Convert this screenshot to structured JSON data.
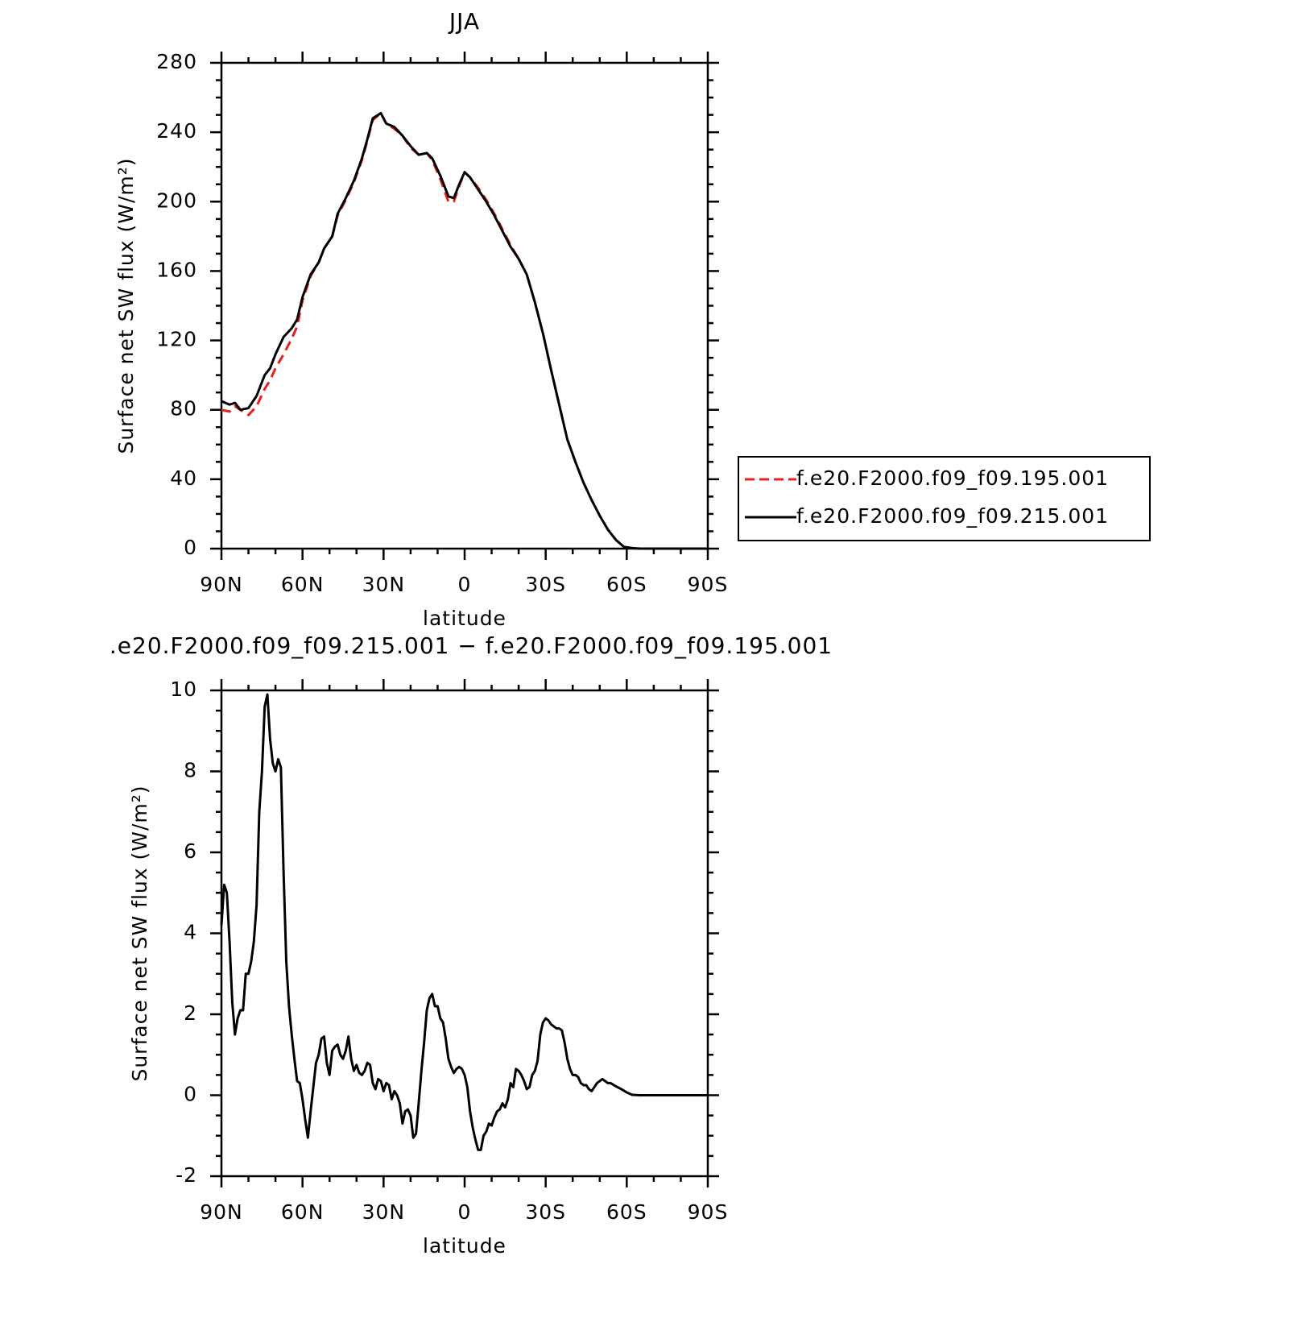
{
  "chart_data": [
    {
      "type": "line",
      "title": "JJA",
      "xlabel": "latitude",
      "ylabel": "Surface net SW flux (W/m²)",
      "x": [
        90,
        87,
        85,
        83,
        80,
        77,
        74,
        72,
        70,
        67,
        64,
        62,
        60,
        57,
        54,
        52,
        49,
        47,
        44,
        41,
        38,
        36,
        34,
        31,
        29,
        26,
        23,
        20,
        17,
        14,
        12,
        9,
        6,
        4,
        2,
        0,
        -2,
        -5,
        -8,
        -11,
        -14,
        -17,
        -20,
        -23,
        -26,
        -29,
        -32,
        -35,
        -38,
        -41,
        -44,
        -47,
        -50,
        -53,
        -56,
        -59,
        -62,
        -65,
        -70,
        -80,
        -90
      ],
      "series": [
        {
          "name": "f.e20.F2000.f09_f09.195.001",
          "color": "#e8201c",
          "dash": true,
          "values": [
            80,
            79,
            82,
            80,
            77,
            82,
            92,
            97,
            104,
            112,
            121,
            128,
            143,
            157,
            165,
            173,
            180,
            192,
            201,
            211,
            224,
            235,
            247,
            251,
            245,
            242,
            238,
            231,
            227,
            228,
            224,
            213,
            200,
            200,
            209,
            217,
            214,
            208,
            201,
            193,
            184,
            175,
            167,
            158,
            142,
            124,
            103,
            83,
            63,
            50,
            38,
            28,
            19,
            11,
            5,
            1,
            0.3,
            0,
            0,
            0,
            0
          ]
        },
        {
          "name": "f.e20.F2000.f09_f09.215.001",
          "color": "#000000",
          "dash": false,
          "values": [
            85,
            83,
            84,
            80,
            81,
            88,
            100,
            104,
            112,
            122,
            127,
            132,
            145,
            158,
            165,
            173,
            180,
            193,
            202,
            212,
            225,
            236,
            248,
            251,
            245,
            243,
            238,
            232,
            227,
            228,
            225,
            215,
            203,
            202,
            210,
            217,
            214,
            207,
            200,
            192,
            183,
            174,
            167,
            158,
            142,
            124,
            103,
            83,
            63,
            50,
            38,
            28,
            19,
            11,
            5,
            1,
            0.3,
            0,
            0,
            0,
            0
          ]
        }
      ],
      "xlim": [
        90,
        -90
      ],
      "xticks": [
        {
          "value": 90,
          "label": "90N"
        },
        {
          "value": 60,
          "label": "60N"
        },
        {
          "value": 30,
          "label": "30N"
        },
        0,
        {
          "value": -30,
          "label": "30S"
        },
        {
          "value": -60,
          "label": "60S"
        },
        {
          "value": -90,
          "label": "90S"
        }
      ],
      "ylim": [
        0,
        280
      ],
      "yticks": [
        0,
        40,
        80,
        120,
        160,
        200,
        240,
        280
      ],
      "legend": "right"
    },
    {
      "type": "line",
      "title": ".e20.F2000.f09_f09.215.001 − f.e20.F2000.f09_f09.195.001",
      "xlabel": "latitude",
      "ylabel": "Surface net SW flux (W/m²)",
      "x": [
        90,
        89,
        88,
        87,
        86,
        85,
        84,
        83,
        82,
        81,
        80,
        79,
        78,
        77,
        76,
        75,
        74,
        73,
        72,
        71,
        70,
        69,
        68,
        67,
        66,
        65,
        64,
        63,
        62,
        61,
        60,
        59,
        58,
        57,
        56,
        55,
        54,
        53,
        52,
        51,
        50,
        49,
        48,
        47,
        46,
        45,
        44,
        43,
        42,
        41,
        40,
        39,
        38,
        37,
        36,
        35,
        34,
        33,
        32,
        31,
        30,
        29,
        28,
        27,
        26,
        25,
        24,
        23,
        22,
        21,
        20,
        19,
        18,
        17,
        16,
        15,
        14,
        13,
        12,
        11,
        10,
        9,
        8,
        7,
        6,
        5,
        4,
        3,
        2,
        1,
        0,
        -1,
        -2,
        -3,
        -4,
        -5,
        -6,
        -7,
        -8,
        -9,
        -10,
        -11,
        -12,
        -13,
        -14,
        -15,
        -16,
        -17,
        -18,
        -19,
        -20,
        -21,
        -22,
        -23,
        -24,
        -25,
        -26,
        -27,
        -28,
        -29,
        -30,
        -31,
        -32,
        -33,
        -34,
        -35,
        -36,
        -37,
        -38,
        -39,
        -40,
        -41,
        -42,
        -43,
        -44,
        -45,
        -46,
        -47,
        -48,
        -49,
        -50,
        -51,
        -52,
        -53,
        -54,
        -56,
        -58,
        -60,
        -62,
        -65,
        -70,
        -80,
        -90
      ],
      "series": [
        {
          "color": "#000000",
          "values": [
            4.2,
            5.2,
            5.0,
            3.8,
            2.3,
            1.5,
            1.9,
            2.1,
            2.1,
            3.0,
            3.0,
            3.3,
            3.8,
            4.7,
            7.0,
            8.0,
            9.6,
            9.9,
            8.8,
            8.2,
            8.0,
            8.3,
            8.1,
            5.5,
            3.3,
            2.2,
            1.5,
            0.9,
            0.35,
            0.3,
            -0.1,
            -0.6,
            -1.05,
            -0.4,
            0.2,
            0.8,
            1.0,
            1.4,
            1.45,
            0.8,
            0.5,
            1.1,
            1.2,
            1.25,
            1.0,
            0.9,
            1.1,
            1.45,
            0.9,
            0.6,
            0.75,
            0.55,
            0.5,
            0.6,
            0.8,
            0.75,
            0.3,
            0.15,
            0.4,
            0.35,
            0.1,
            0.3,
            0.25,
            -0.1,
            0.1,
            0.0,
            -0.2,
            -0.7,
            -0.4,
            -0.35,
            -0.5,
            -1.05,
            -0.95,
            -0.2,
            0.6,
            1.3,
            2.1,
            2.4,
            2.5,
            2.2,
            2.2,
            1.9,
            1.8,
            1.4,
            0.9,
            0.7,
            0.55,
            0.65,
            0.7,
            0.65,
            0.5,
            0.2,
            -0.4,
            -0.8,
            -1.1,
            -1.35,
            -1.35,
            -1.0,
            -0.9,
            -0.7,
            -0.75,
            -0.55,
            -0.4,
            -0.35,
            -0.2,
            -0.3,
            -0.1,
            0.3,
            0.2,
            0.65,
            0.6,
            0.5,
            0.35,
            0.15,
            0.2,
            0.5,
            0.6,
            0.85,
            1.5,
            1.8,
            1.9,
            1.85,
            1.75,
            1.7,
            1.65,
            1.65,
            1.6,
            1.3,
            0.9,
            0.65,
            0.5,
            0.5,
            0.45,
            0.3,
            0.25,
            0.25,
            0.15,
            0.1,
            0.2,
            0.3,
            0.35,
            0.4,
            0.35,
            0.3,
            0.3,
            0.22,
            0.15,
            0.07,
            0.01,
            0,
            0,
            0,
            0
          ]
        }
      ],
      "xlim": [
        90,
        -90
      ],
      "xticks": [
        {
          "value": 90,
          "label": "90N"
        },
        {
          "value": 60,
          "label": "60N"
        },
        {
          "value": 30,
          "label": "30N"
        },
        0,
        {
          "value": -30,
          "label": "30S"
        },
        {
          "value": -60,
          "label": "60S"
        },
        {
          "value": -90,
          "label": "90S"
        }
      ],
      "ylim": [
        -2,
        10
      ],
      "yticks": [
        -2,
        0,
        2,
        4,
        6,
        8,
        10
      ]
    }
  ]
}
